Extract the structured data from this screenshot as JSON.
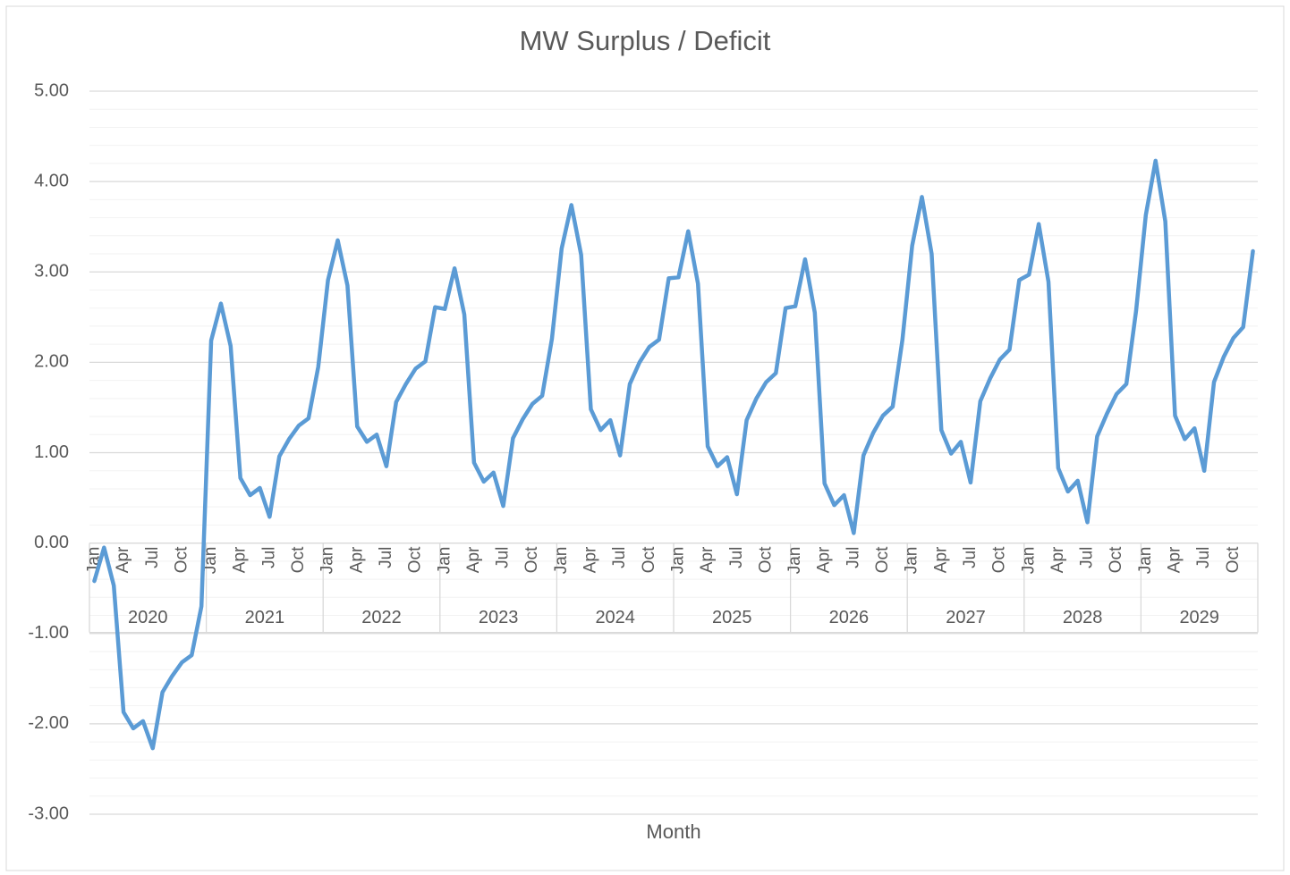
{
  "chart_data": {
    "type": "line",
    "title": "MW Surplus / Deficit",
    "x_label": "Month",
    "categories": [
      "Jan",
      null,
      null,
      "Apr",
      null,
      null,
      "Jul",
      null,
      null,
      "Oct",
      null,
      null,
      "Jan",
      null,
      null,
      "Apr",
      null,
      null,
      "Jul",
      null,
      null,
      "Oct",
      null,
      null,
      "Jan",
      null,
      null,
      "Apr",
      null,
      null,
      "Jul",
      null,
      null,
      "Oct",
      null,
      null,
      "Jan",
      null,
      null,
      "Apr",
      null,
      null,
      "Jul",
      null,
      null,
      "Oct",
      null,
      null,
      "Jan",
      null,
      null,
      "Apr",
      null,
      null,
      "Jul",
      null,
      null,
      "Oct",
      null,
      null,
      "Jan",
      null,
      null,
      "Apr",
      null,
      null,
      "Jul",
      null,
      null,
      "Oct",
      null,
      null,
      "Jan",
      null,
      null,
      "Apr",
      null,
      null,
      "Jul",
      null,
      null,
      "Oct",
      null,
      null,
      "Jan",
      null,
      null,
      "Apr",
      null,
      null,
      "Jul",
      null,
      null,
      "Oct",
      null,
      null,
      "Jan",
      null,
      null,
      "Apr",
      null,
      null,
      "Jul",
      null,
      null,
      "Oct",
      null,
      null,
      "Jan",
      null,
      null,
      "Apr",
      null,
      null,
      "Jul",
      null,
      null,
      "Oct",
      null,
      null
    ],
    "year_groups": [
      "2020",
      "2021",
      "2022",
      "2023",
      "2024",
      "2025",
      "2026",
      "2027",
      "2028",
      "2029"
    ],
    "color": "#5b9bd5",
    "values": [
      -0.42,
      -0.05,
      -0.47,
      -1.87,
      -2.05,
      -1.97,
      -2.27,
      -1.65,
      -1.47,
      -1.32,
      -1.24,
      -0.7,
      2.24,
      2.65,
      2.18,
      0.72,
      0.53,
      0.61,
      0.29,
      0.96,
      1.15,
      1.3,
      1.38,
      1.95,
      2.91,
      3.35,
      2.85,
      1.29,
      1.12,
      1.2,
      0.85,
      1.56,
      1.76,
      1.93,
      2.01,
      2.61,
      2.59,
      3.04,
      2.53,
      0.89,
      0.68,
      0.78,
      0.41,
      1.16,
      1.37,
      1.54,
      1.63,
      2.26,
      3.26,
      3.74,
      3.19,
      1.48,
      1.25,
      1.36,
      0.97,
      1.76,
      2.0,
      2.17,
      2.25,
      2.93,
      2.94,
      3.45,
      2.87,
      1.07,
      0.85,
      0.95,
      0.54,
      1.36,
      1.6,
      1.78,
      1.88,
      2.6,
      2.62,
      3.14,
      2.55,
      0.66,
      0.42,
      0.53,
      0.11,
      0.97,
      1.22,
      1.41,
      1.51,
      2.25,
      3.29,
      3.83,
      3.2,
      1.25,
      0.99,
      1.12,
      0.67,
      1.57,
      1.82,
      2.03,
      2.14,
      2.91,
      2.97,
      3.53,
      2.89,
      0.83,
      0.57,
      0.69,
      0.23,
      1.18,
      1.43,
      1.65,
      1.76,
      2.57,
      3.63,
      4.23,
      3.56,
      1.41,
      1.15,
      1.27,
      0.8,
      1.78,
      2.06,
      2.27,
      2.39,
      3.23
    ],
    "ylim": [
      -3,
      5
    ],
    "yticks": [
      {
        "value": -3,
        "label": "-3.00"
      },
      {
        "value": -2,
        "label": "-2.00"
      },
      {
        "value": -1,
        "label": "-1.00"
      },
      {
        "value": 0,
        "label": "0.00"
      },
      {
        "value": 1,
        "label": "1.00"
      },
      {
        "value": 2,
        "label": "2.00"
      },
      {
        "value": 3,
        "label": "3.00"
      },
      {
        "value": 4,
        "label": "4.00"
      },
      {
        "value": 5,
        "label": "5.00"
      }
    ],
    "minor_yticks": [
      -2.8,
      -2.6,
      -2.4,
      -2.2,
      -1.8,
      -1.6,
      -1.4,
      -1.2,
      -0.8,
      -0.6,
      -0.4,
      -0.2,
      0.2,
      0.4,
      0.6,
      0.8,
      1.2,
      1.4,
      1.6,
      1.8,
      2.2,
      2.4,
      2.6,
      2.8,
      3.2,
      3.4,
      3.6,
      3.8,
      4.2,
      4.4,
      4.6,
      4.8
    ],
    "grid": true
  }
}
